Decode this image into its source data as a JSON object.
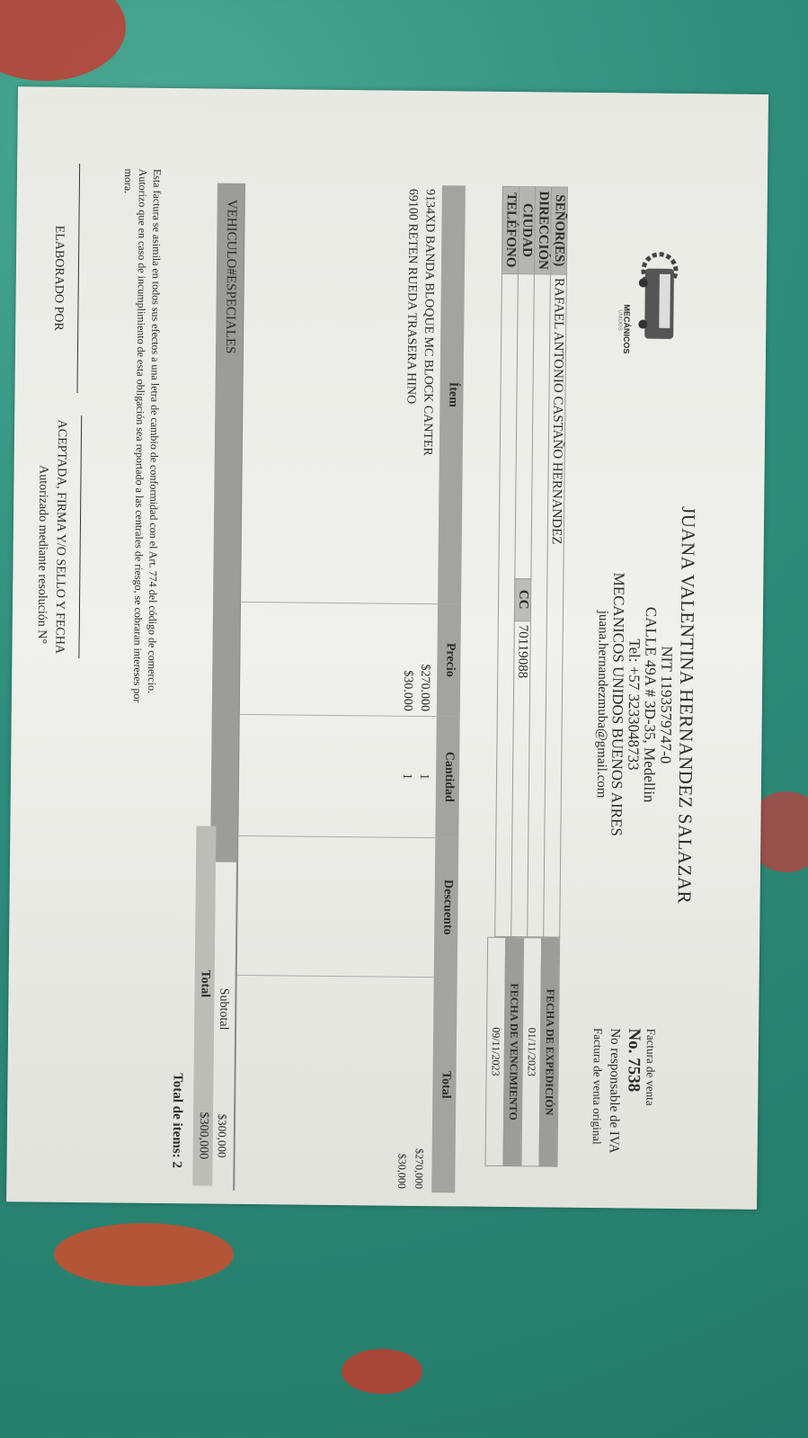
{
  "colors": {
    "background": "#2f8f7c",
    "paper": "#ecece7",
    "table_header": "#a3a39f"
  },
  "logo": {
    "icon": "bus-gear-logo",
    "text": "MECÁNICOS",
    "subtext": "UNIDOS"
  },
  "issuer": {
    "name": "JUANA VALENTINA HERNANDEZ SALAZAR",
    "nit": "NIT 1193579747-0",
    "address": "CALLE 49A # 3D-35, Medellin",
    "phone": "Tel: +57 3233048733",
    "business": "MECANICOS UNIDOS BUENOS AIRES",
    "email": "juana.hernandezmuba@gmail.com"
  },
  "invoice": {
    "type": "Factura de venta",
    "number": "No. 7538",
    "tax_note": "No responsable de IVA",
    "copy": "Factura de venta original"
  },
  "client": {
    "labels": {
      "name": "SEÑOR(ES)",
      "address": "DIRECCIÓN",
      "city": "CIUDAD",
      "phone": "TELÉFONO",
      "id_type": "CC"
    },
    "name": "RAFAEL ANTONIO CASTAÑO HERNANDEZ",
    "address": "",
    "city": "",
    "phone": "",
    "id_number": "70119088"
  },
  "dates": {
    "issue_label": "FECHA DE EXPEDICIÓN",
    "issue": "01/11/2023",
    "due_label": "FECHA DE VENCIMIENTO",
    "due": "09/11/2023"
  },
  "items": {
    "headers": [
      "Ítem",
      "Precio",
      "Cantidad",
      "Descuento",
      "Total"
    ],
    "rows": [
      {
        "item": "9134XD BANDA BLOQUE MC BLOCK CANTER",
        "price": "$270.000",
        "qty": "1",
        "discount": "",
        "total": "$270,000"
      },
      {
        "item": "69100 RETEN RUEDA TRASERA HINO",
        "price": "$30.000",
        "qty": "1",
        "discount": "",
        "total": "$30,000"
      }
    ]
  },
  "note": "VEHICULO#ESPECIALES",
  "totals": {
    "subtotal_label": "Subtotal",
    "subtotal": "$300,000",
    "total_label": "Total",
    "total": "$300,000",
    "count": "Total de items: 2"
  },
  "legal": {
    "line1": "Esta factura se asimila en todos sus efectos a una letra de cambio de conformidad con el Art. 774 del código de comercio.",
    "line2": "Autorizo que en caso de incumplimiento de esta obligación sea reportado a las centrales de riesgo, se cobraran intereses por",
    "line3": "mora."
  },
  "signatures": {
    "made_by": "ELABORADO POR",
    "accepted": "ACEPTADA, FIRMA Y/O SELLO Y FECHA",
    "resolution": "Autorizado mediante resolución N°"
  }
}
